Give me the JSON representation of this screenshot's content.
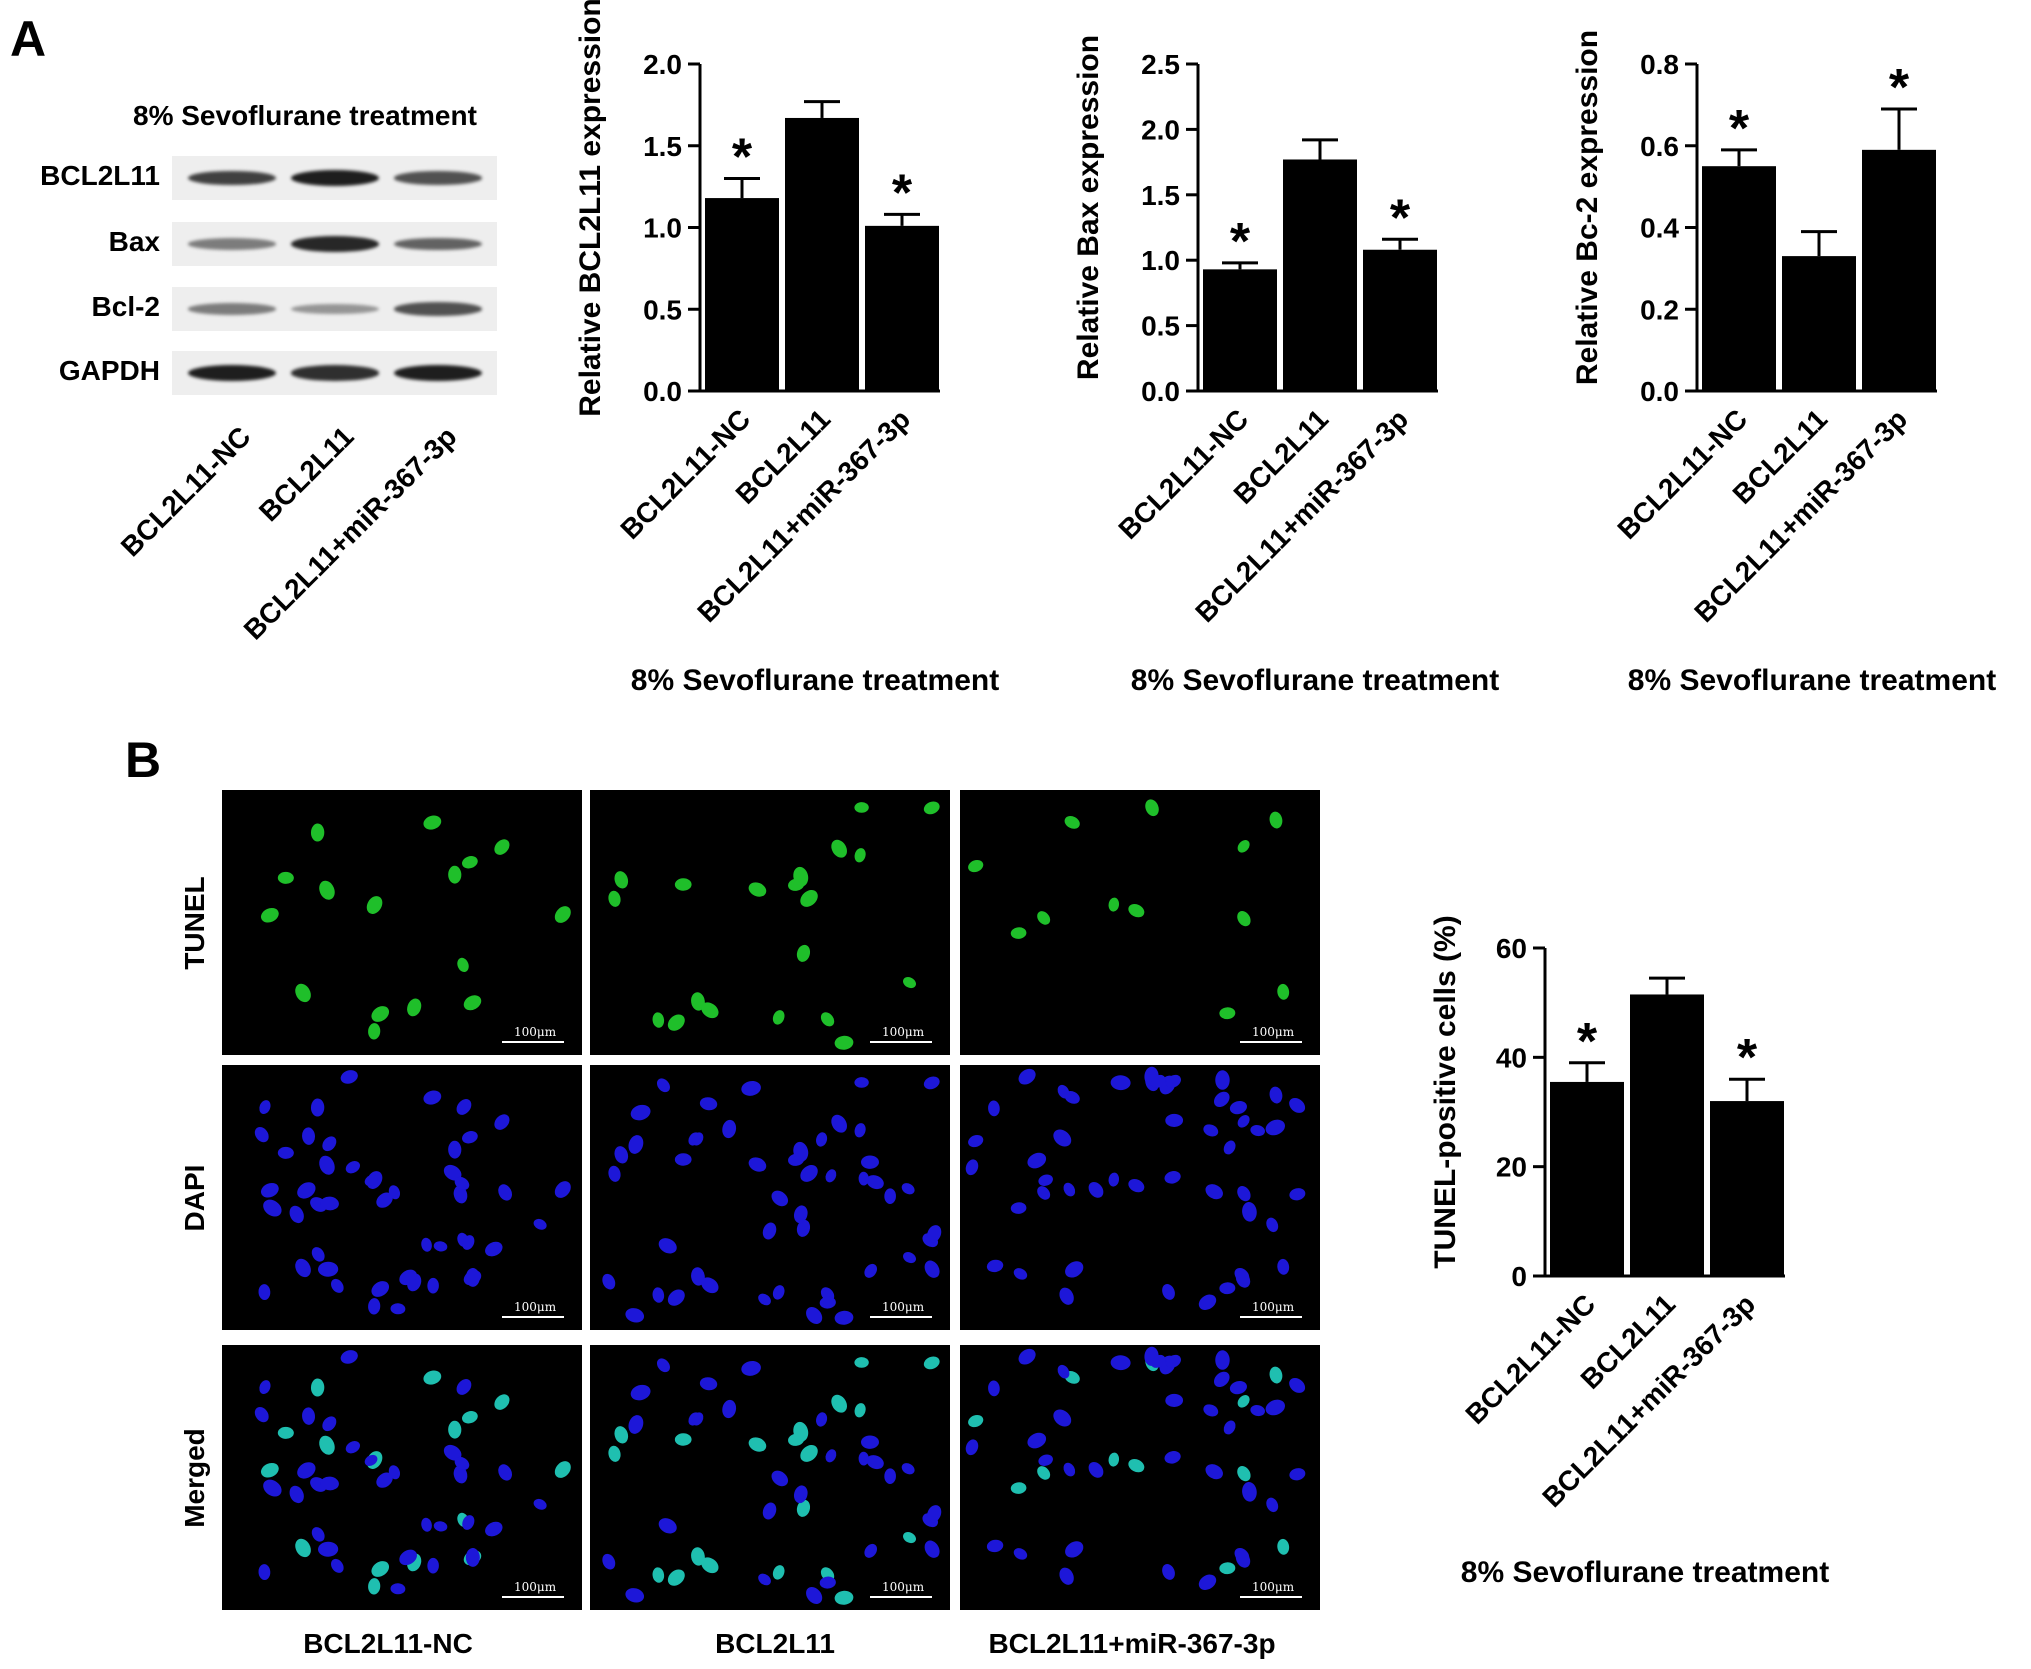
{
  "panels": {
    "a": "A",
    "b": "B"
  },
  "western": {
    "title": "8% Sevoflurane treatment",
    "proteins": [
      "BCL2L11",
      "Bax",
      "Bcl-2",
      "GAPDH"
    ],
    "lanes": [
      "BCL2L11-NC",
      "BCL2L11",
      "BCL2L11+miR-367-3p"
    ],
    "band_intensity": [
      [
        0.8,
        1.0,
        0.7
      ],
      [
        0.45,
        0.95,
        0.6
      ],
      [
        0.45,
        0.3,
        0.7
      ],
      [
        1.0,
        0.9,
        1.0
      ]
    ]
  },
  "chart_data": [
    {
      "type": "bar",
      "categories": [
        "BCL2L11-NC",
        "BCL2L11",
        "BCL2L11+miR-367-3p"
      ],
      "values": [
        1.18,
        1.67,
        1.01
      ],
      "errors": [
        0.12,
        0.1,
        0.07
      ],
      "significance": [
        "*",
        "",
        "*"
      ],
      "ylabel": "Relative BCL2L11 expression",
      "xlabel": "8% Sevoflurane treatment",
      "ylim": [
        0,
        2.0
      ],
      "yticks": [
        "0.0",
        "0.5",
        "1.0",
        "1.5",
        "2.0"
      ]
    },
    {
      "type": "bar",
      "categories": [
        "BCL2L11-NC",
        "BCL2L11",
        "BCL2L11+miR-367-3p"
      ],
      "values": [
        0.93,
        1.77,
        1.08
      ],
      "errors": [
        0.05,
        0.15,
        0.08
      ],
      "significance": [
        "*",
        "",
        "*"
      ],
      "ylabel": "Relative Bax expression",
      "xlabel": "8% Sevoflurane treatment",
      "ylim": [
        0,
        2.5
      ],
      "yticks": [
        "0.0",
        "0.5",
        "1.0",
        "1.5",
        "2.0",
        "2.5"
      ]
    },
    {
      "type": "bar",
      "categories": [
        "BCL2L11-NC",
        "BCL2L11",
        "BCL2L11+miR-367-3p"
      ],
      "values": [
        0.55,
        0.33,
        0.59
      ],
      "errors": [
        0.04,
        0.06,
        0.1
      ],
      "significance": [
        "*",
        "",
        "*"
      ],
      "ylabel": "Relative Bc-2 expression",
      "xlabel": "8% Sevoflurane treatment",
      "ylim": [
        0,
        0.8
      ],
      "yticks": [
        "0.0",
        "0.2",
        "0.4",
        "0.6",
        "0.8"
      ]
    },
    {
      "type": "bar",
      "categories": [
        "BCL2L11-NC",
        "BCL2L11",
        "BCL2L11+miR-367-3p"
      ],
      "values": [
        35.5,
        51.5,
        32
      ],
      "errors": [
        3.5,
        3,
        4
      ],
      "significance": [
        "*",
        "",
        "*"
      ],
      "ylabel": "TUNEL-positive cells (%)",
      "xlabel": "8% Sevoflurane treatment",
      "ylim": [
        0,
        60
      ],
      "yticks": [
        "0",
        "20",
        "40",
        "60"
      ]
    }
  ],
  "microscopy": {
    "rows": [
      "TUNEL",
      "DAPI",
      "Merged"
    ],
    "columns": [
      "BCL2L11-NC",
      "BCL2L11",
      "BCL2L11+miR-367-3p"
    ],
    "scale_bar": "100μm",
    "colors": {
      "tunel": "#1fbf2a",
      "dapi": "#1d17d8",
      "merged": "#1fbfb0"
    }
  }
}
